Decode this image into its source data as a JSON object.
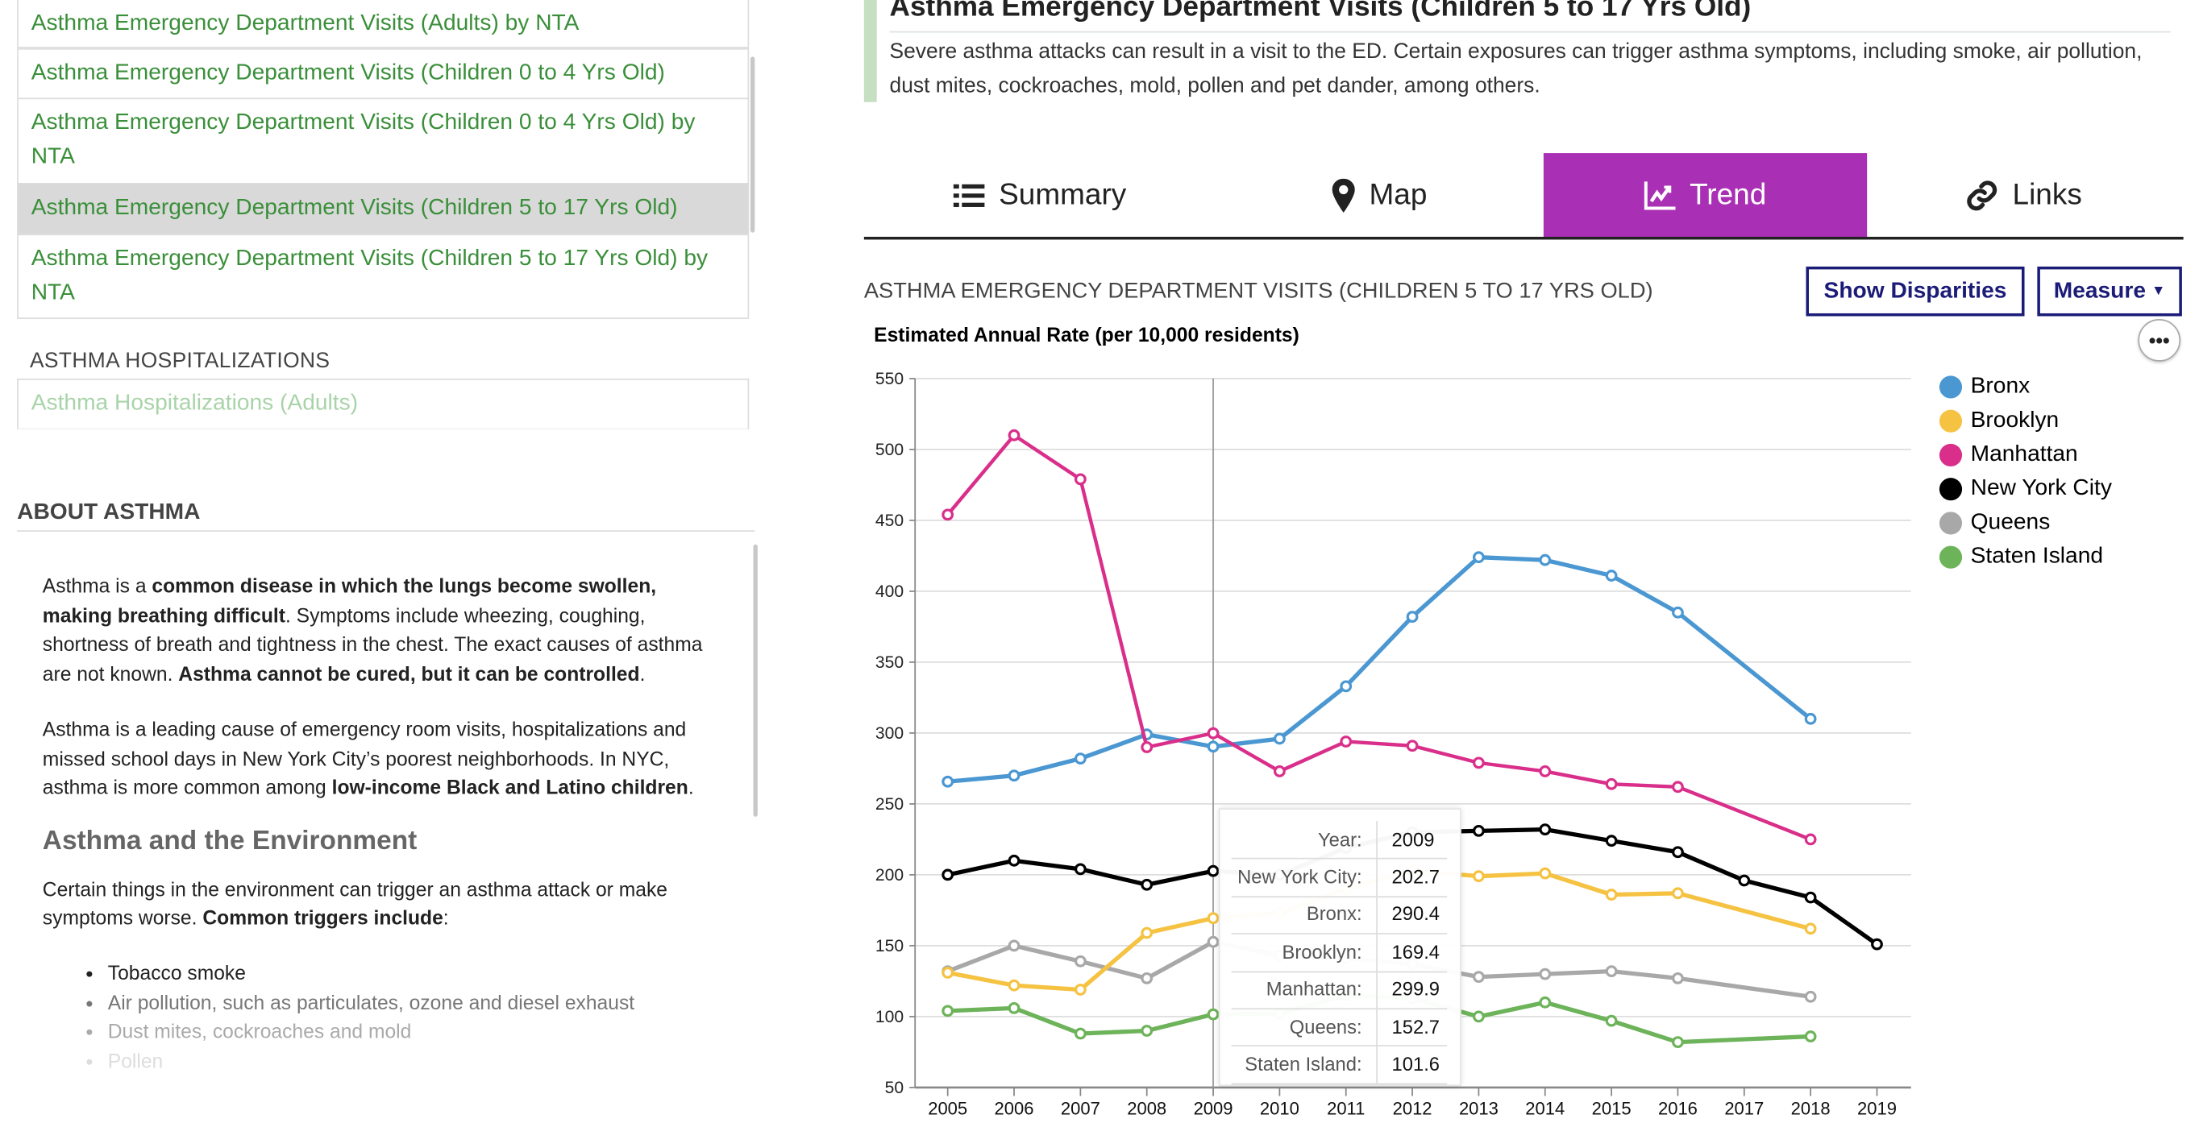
{
  "sidebar": {
    "items": [
      {
        "label": "Asthma Emergency Department Visits (Adults) by NTA"
      },
      {
        "label": "Asthma Emergency Department Visits (Children 0 to 4 Yrs Old)"
      },
      {
        "label": "Asthma Emergency Department Visits (Children 0 to 4 Yrs Old) by NTA"
      },
      {
        "label": "Asthma Emergency Department Visits (Children 5 to 17 Yrs Old)",
        "selected": true
      },
      {
        "label": "Asthma Emergency Department Visits (Children 5 to 17 Yrs Old) by NTA"
      }
    ],
    "hospitalizations_heading": "ASTHMA HOSPITALIZATIONS",
    "hospitalizations_items": [
      {
        "label": "Asthma Hospitalizations (Adults)"
      }
    ]
  },
  "about": {
    "heading": "ABOUT ASTHMA",
    "paragraphs": [
      [
        {
          "t": "Asthma is a "
        },
        {
          "t": "common disease in which the lungs become swollen, making breathing difficult",
          "b": true
        },
        {
          "t": ". Symptoms include wheezing, coughing, shortness of breath and tightness in the chest. The exact causes of asthma are not known. "
        },
        {
          "t": "Asthma cannot be cured, but it can be controlled",
          "b": true
        },
        {
          "t": "."
        }
      ],
      [
        {
          "t": "Asthma is a leading cause of emergency room visits, hospitalizations and missed school days in New York City’s poorest neighborhoods. In NYC, asthma is more common among "
        },
        {
          "t": "low-income Black and Latino children",
          "b": true
        },
        {
          "t": "."
        }
      ]
    ],
    "subheading": "Asthma and the Environment",
    "env_paragraph": [
      {
        "t": "Certain things in the environment can trigger an asthma attack or make symptoms worse. "
      },
      {
        "t": "Common triggers include",
        "b": true
      },
      {
        "t": ":"
      }
    ],
    "triggers": [
      "Tobacco smoke",
      "Air pollution, such as particulates, ozone and diesel exhaust",
      "Dust mites, cockroaches and mold",
      "Pollen"
    ]
  },
  "indicator": {
    "title": "Asthma Emergency Department Visits (Children 5 to 17 Yrs Old)",
    "description": "Severe asthma attacks can result in a visit to the ED. Certain exposures can trigger asthma symptoms, including smoke, air pollution, dust mites, cockroaches, mold, pollen and pet dander, among others."
  },
  "tabs": [
    {
      "label": "Summary",
      "icon": "list-icon"
    },
    {
      "label": "Map",
      "icon": "map-marker-icon"
    },
    {
      "label": "Trend",
      "icon": "line-chart-icon",
      "active": true
    },
    {
      "label": "Links",
      "icon": "link-icon"
    }
  ],
  "accent_color": "#a92fb5",
  "chart_header": {
    "title": "ASTHMA EMERGENCY DEPARTMENT VISITS (CHILDREN 5 TO 17 YRS OLD)",
    "show_disparities": "Show Disparities",
    "measure": "Measure",
    "more_icon": "ellipsis-icon"
  },
  "chart_data": {
    "type": "line",
    "ylabel": "Estimated Annual Rate (per 10,000 residents)",
    "xlabel": "",
    "ylim": [
      50,
      550
    ],
    "yticks": [
      50,
      100,
      150,
      200,
      250,
      300,
      350,
      400,
      450,
      500,
      550
    ],
    "x": [
      2005,
      2006,
      2007,
      2008,
      2009,
      2010,
      2011,
      2012,
      2013,
      2014,
      2015,
      2016,
      2017,
      2018,
      2019
    ],
    "grid": true,
    "legend": "right",
    "series": [
      {
        "name": "Bronx",
        "color": "#4a97d2",
        "values": [
          265.7,
          270,
          282,
          299,
          290.4,
          296,
          333,
          382,
          424,
          422,
          411,
          385,
          null,
          310,
          null
        ]
      },
      {
        "name": "Brooklyn",
        "color": "#f5c242",
        "values": [
          131,
          122,
          119,
          159,
          169.4,
          173,
          190,
          203,
          199,
          201,
          186,
          187,
          null,
          162,
          null
        ]
      },
      {
        "name": "Manhattan",
        "color": "#d92f8a",
        "values": [
          454,
          510,
          479,
          290,
          299.9,
          273,
          294,
          291,
          279,
          273,
          264,
          262,
          null,
          225,
          null
        ]
      },
      {
        "name": "New York City",
        "color": "#000000",
        "values": [
          200,
          210,
          204,
          193,
          202.7,
          200,
          219,
          230,
          231,
          232,
          224,
          216,
          196,
          184,
          151
        ]
      },
      {
        "name": "Queens",
        "color": "#a8a8a8",
        "values": [
          132,
          150,
          139,
          127,
          152.7,
          143,
          141,
          137,
          128,
          130,
          132,
          127,
          null,
          114,
          null
        ]
      },
      {
        "name": "Staten Island",
        "color": "#6db35a",
        "values": [
          104,
          106,
          88,
          90,
          101.6,
          102,
          115,
          113,
          100,
          110,
          97,
          82,
          null,
          86,
          null
        ]
      }
    ],
    "hover_year": 2009
  },
  "tooltip": {
    "rows": [
      {
        "label": "Year:",
        "value": "2009"
      },
      {
        "label": "New York City:",
        "value": "202.7"
      },
      {
        "label": "Bronx:",
        "value": "290.4"
      },
      {
        "label": "Brooklyn:",
        "value": "169.4"
      },
      {
        "label": "Manhattan:",
        "value": "299.9"
      },
      {
        "label": "Queens:",
        "value": "152.7"
      },
      {
        "label": "Staten Island:",
        "value": "101.6"
      }
    ]
  }
}
